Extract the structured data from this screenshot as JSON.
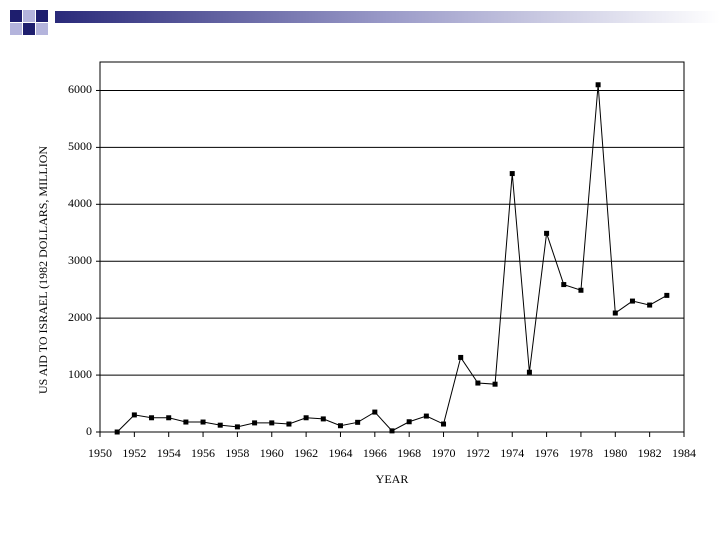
{
  "chart_data": {
    "type": "line",
    "x_label": "YEAR",
    "y_label": "US AID TO ISRAEL (1982 DOLLARS, MILLION",
    "x": [
      1951,
      1952,
      1953,
      1954,
      1955,
      1956,
      1957,
      1958,
      1959,
      1960,
      1961,
      1962,
      1963,
      1964,
      1965,
      1966,
      1967,
      1968,
      1969,
      1970,
      1971,
      1972,
      1973,
      1974,
      1975,
      1976,
      1977,
      1978,
      1979,
      1980,
      1981,
      1982,
      1983
    ],
    "series": [
      {
        "name": "US aid",
        "color": "#000000",
        "values": [
          0,
          300,
          250,
          250,
          175,
          175,
          120,
          90,
          160,
          160,
          140,
          250,
          230,
          110,
          170,
          350,
          20,
          180,
          280,
          140,
          1310,
          860,
          840,
          4540,
          1050,
          3490,
          2590,
          2490,
          6100,
          2090,
          2300,
          2230,
          2400
        ]
      }
    ],
    "xlim": [
      1950,
      1984
    ],
    "xticks": [
      1950,
      1952,
      1954,
      1956,
      1958,
      1960,
      1962,
      1964,
      1966,
      1968,
      1970,
      1972,
      1974,
      1976,
      1978,
      1980,
      1982,
      1984
    ],
    "ylim": [
      0,
      6500
    ],
    "yticks": [
      0,
      1000,
      2000,
      3000,
      4000,
      5000,
      6000
    ],
    "grid": true
  }
}
